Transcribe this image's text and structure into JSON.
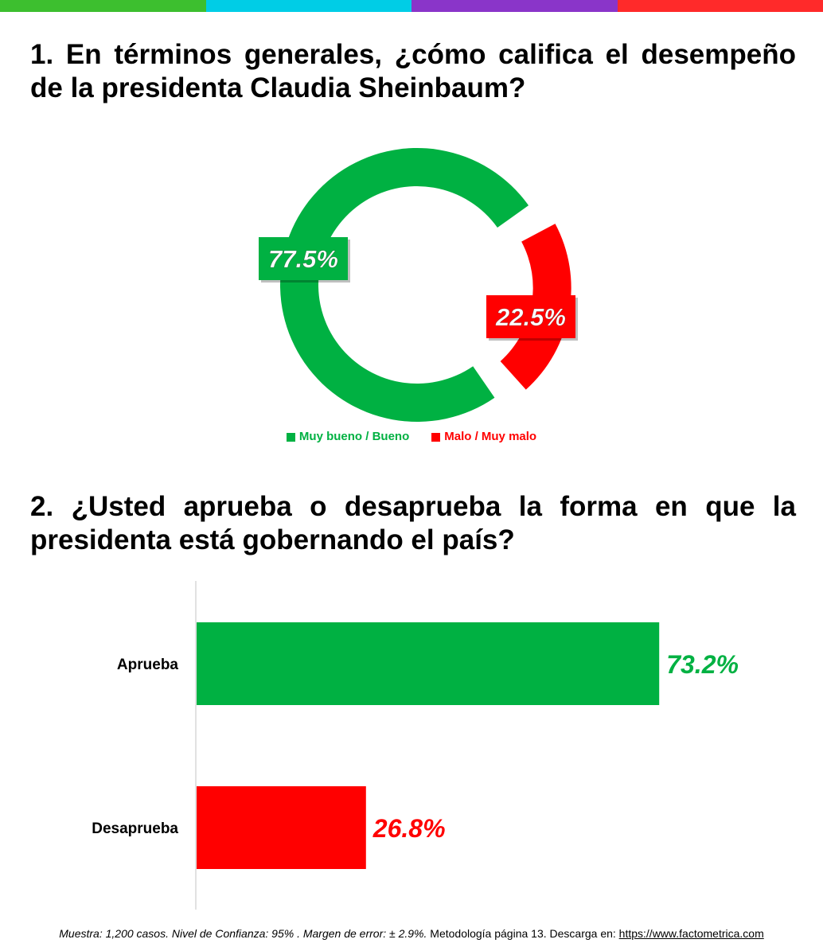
{
  "colors": {
    "stripe": [
      "#3dbf2f",
      "#00cde6",
      "#8a35c9",
      "#ff2a2a"
    ],
    "green": "#00b142",
    "red": "#ff0000"
  },
  "questions": {
    "q1": "1. En términos generales, ¿cómo califica el desempeño de la presidenta Claudia Sheinbaum?",
    "q2": "2. ¿Usted aprueba o desaprueba la forma en que la presidenta está gobernando el país?"
  },
  "chart_data": [
    {
      "type": "pie",
      "variant": "donut",
      "labels": [
        "Muy bueno / Bueno",
        "Malo / Muy malo"
      ],
      "values": [
        77.5,
        22.5
      ],
      "value_labels": [
        "77.5%",
        "22.5%"
      ],
      "colors": [
        "#00b142",
        "#ff0000"
      ],
      "legend": "bottom"
    },
    {
      "type": "bar",
      "orientation": "horizontal",
      "categories": [
        "Aprueba",
        "Desaprueba"
      ],
      "values": [
        73.2,
        26.8
      ],
      "value_labels": [
        "73.2%",
        "26.8%"
      ],
      "colors": [
        "#00b142",
        "#ff0000"
      ],
      "xlim": [
        0,
        100
      ],
      "grid": false
    }
  ],
  "footer": {
    "sample": "Muestra:  1,200 casos. Nivel de Confianza: 95% . Margen de error: ± 2.9%.",
    "methodology": " Metodología página 13. Descarga en: ",
    "link": "https://www.factometrica.com"
  }
}
